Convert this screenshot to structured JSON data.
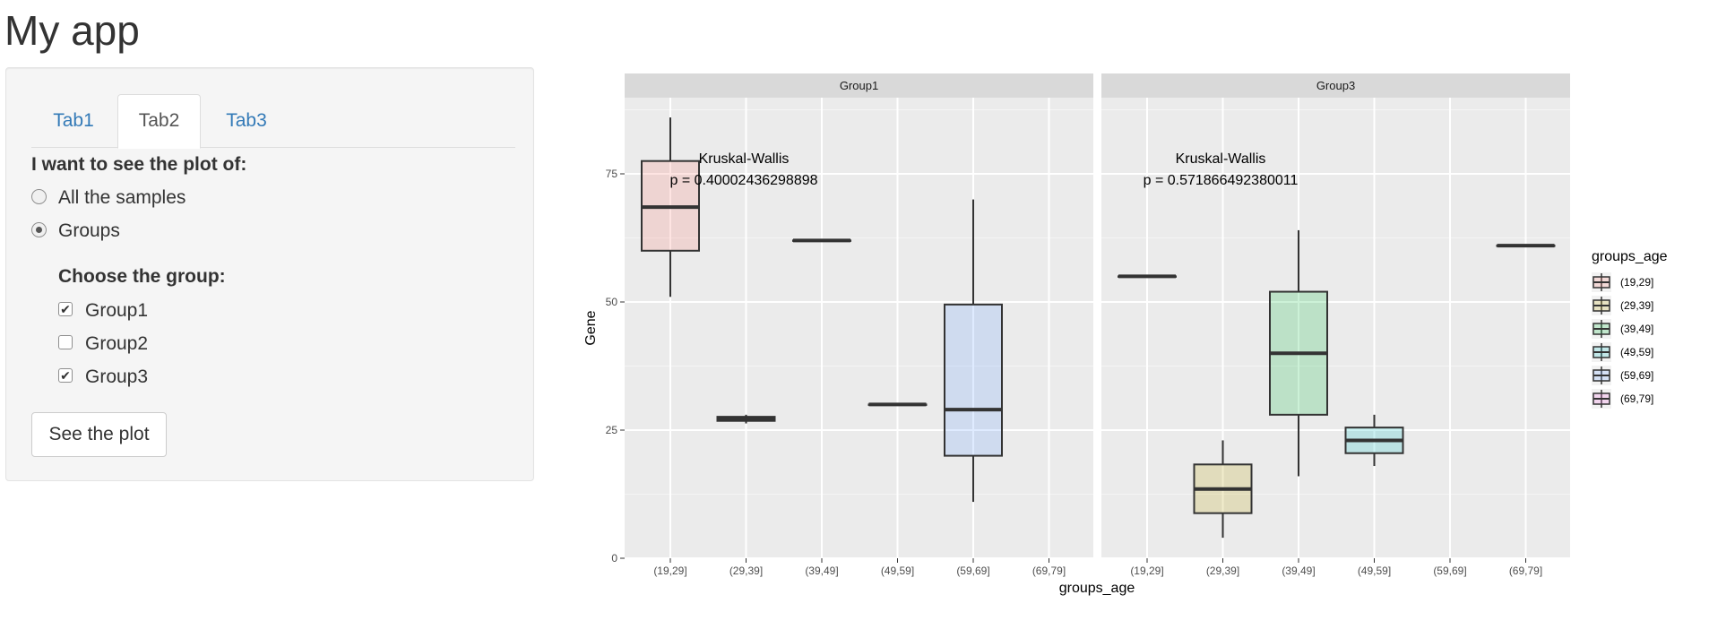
{
  "app": {
    "title": "My app"
  },
  "tabs": [
    {
      "label": "Tab1",
      "active": false
    },
    {
      "label": "Tab2",
      "active": true
    },
    {
      "label": "Tab3",
      "active": false
    }
  ],
  "sidebar": {
    "plot_question": "I want to see the plot of:",
    "plot_options": [
      {
        "label": "All the samples",
        "selected": false
      },
      {
        "label": "Groups",
        "selected": true
      }
    ],
    "group_question": "Choose the group:",
    "groups": [
      {
        "label": "Group1",
        "checked": true
      },
      {
        "label": "Group2",
        "checked": false
      },
      {
        "label": "Group3",
        "checked": true
      }
    ],
    "see_plot_label": "See the plot"
  },
  "chart_data": {
    "type": "boxplot",
    "xlabel": "groups_age",
    "ylabel": "Gene",
    "ylim": [
      0,
      90
    ],
    "yticks": [
      0,
      25,
      50,
      75
    ],
    "categories": [
      "(19,29]",
      "(29,39]",
      "(39,49]",
      "(49,59]",
      "(59,69]",
      "(69,79]"
    ],
    "legend": {
      "title": "groups_age",
      "placement": "right",
      "entries": [
        {
          "label": "(19,29]",
          "fill": "#f8766d"
        },
        {
          "label": "(29,39]",
          "fill": "#b79f00"
        },
        {
          "label": "(39,49]",
          "fill": "#00ba38"
        },
        {
          "label": "(49,59]",
          "fill": "#00bfc4"
        },
        {
          "label": "(59,69]",
          "fill": "#619cff"
        },
        {
          "label": "(69,79]",
          "fill": "#f564e3"
        }
      ]
    },
    "facets": [
      {
        "name": "Group1",
        "annotation": {
          "test": "Kruskal-Wallis",
          "p": "p = 0.40002436298898"
        },
        "boxes": [
          {
            "category": "(19,29]",
            "min": 51,
            "q1": 60,
            "median": 68.5,
            "q3": 77.5,
            "max": 86
          },
          {
            "category": "(29,39]",
            "min": 26.3,
            "q1": 26.8,
            "median": 27.2,
            "q3": 27.6,
            "max": 28
          },
          {
            "category": "(39,49]",
            "min": 62,
            "q1": 62,
            "median": 62,
            "q3": 62,
            "max": 62
          },
          {
            "category": "(49,59]",
            "min": 30,
            "q1": 30,
            "median": 30,
            "q3": 30,
            "max": 30
          },
          {
            "category": "(59,69]",
            "min": 11,
            "q1": 20,
            "median": 29,
            "q3": 49.5,
            "max": 70
          }
        ]
      },
      {
        "name": "Group3",
        "annotation": {
          "test": "Kruskal-Wallis",
          "p": "p = 0.571866492380011"
        },
        "boxes": [
          {
            "category": "(19,29]",
            "min": 55,
            "q1": 55,
            "median": 55,
            "q3": 55,
            "max": 55
          },
          {
            "category": "(29,39]",
            "min": 4,
            "q1": 8.8,
            "median": 13.5,
            "q3": 18.3,
            "max": 23
          },
          {
            "category": "(39,49]",
            "min": 16,
            "q1": 28,
            "median": 40,
            "q3": 52,
            "max": 64
          },
          {
            "category": "(49,59]",
            "min": 18,
            "q1": 20.5,
            "median": 23,
            "q3": 25.5,
            "max": 28
          },
          {
            "category": "(69,79]",
            "min": 61,
            "q1": 61,
            "median": 61,
            "q3": 61,
            "max": 61
          }
        ]
      }
    ]
  }
}
